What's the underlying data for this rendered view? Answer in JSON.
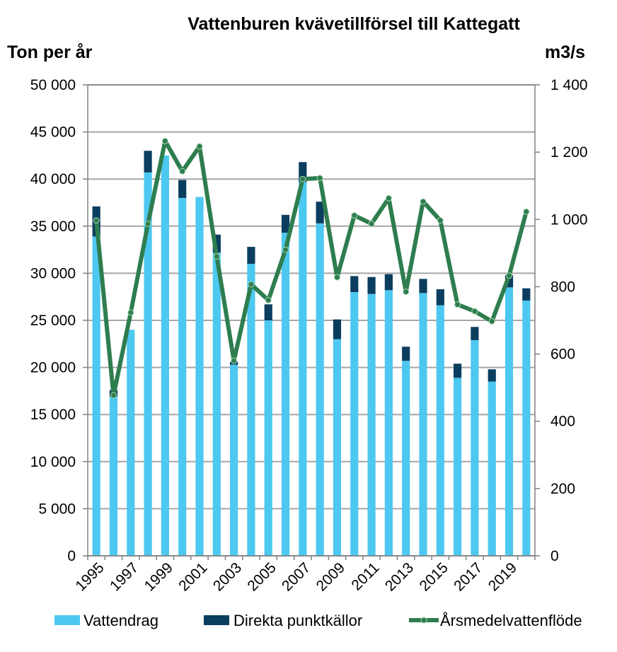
{
  "chart_data": {
    "type": "bar",
    "title": "Vattenburen kvävetillförsel till Kattegatt",
    "ylabel": "Ton per år",
    "y2label": "m3/s",
    "ylim": [
      0,
      50000
    ],
    "y2lim": [
      0,
      1400
    ],
    "yticks": [
      "0",
      "5 000",
      "10 000",
      "15 000",
      "20 000",
      "25 000",
      "30 000",
      "35 000",
      "40 000",
      "45 000",
      "50 000"
    ],
    "y2ticks": [
      "0",
      "200",
      "400",
      "600",
      "800",
      "1 000",
      "1 200",
      "1 400"
    ],
    "xticks": [
      "1995",
      "1997",
      "1999",
      "2001",
      "2003",
      "2005",
      "2007",
      "2009",
      "2011",
      "2013",
      "2015",
      "2017",
      "2019"
    ],
    "categories": [
      "1995",
      "1996",
      "1997",
      "1998",
      "1999",
      "2000",
      "2001",
      "2002",
      "2003",
      "2004",
      "2005",
      "2006",
      "2007",
      "2008",
      "2009",
      "2010",
      "2011",
      "2012",
      "2013",
      "2014",
      "2015",
      "2016",
      "2017",
      "2018",
      "2019",
      "2020"
    ],
    "series": [
      {
        "name": "Vattendrag",
        "color": "#4dc8f0",
        "stacked": true,
        "values": [
          33900,
          16900,
          24000,
          40700,
          42500,
          38000,
          38100,
          32200,
          20300,
          31000,
          25000,
          34300,
          39700,
          35300,
          23000,
          28000,
          27800,
          28200,
          20700,
          27900,
          26600,
          18900,
          22900,
          18500,
          28500,
          27100
        ]
      },
      {
        "name": "Direkta punktkällor",
        "color": "#0b3d5f",
        "stacked": true,
        "values": [
          3200,
          700,
          0,
          2300,
          0,
          1900,
          0,
          1900,
          300,
          1800,
          1700,
          1900,
          2100,
          2300,
          2100,
          1700,
          1800,
          1700,
          1500,
          1500,
          1700,
          1500,
          1400,
          1300,
          1300,
          1300
        ]
      },
      {
        "name": "Årsmedelvattenflöde",
        "color": "#2e7d4f",
        "axis": "right",
        "type": "line",
        "values": [
          997,
          477,
          723,
          987,
          1233,
          1143,
          1217,
          890,
          580,
          807,
          760,
          910,
          1120,
          1123,
          828,
          1012,
          987,
          1063,
          785,
          1053,
          997,
          747,
          727,
          697,
          833,
          1023
        ]
      }
    ],
    "legend": "bottom",
    "grid": true
  }
}
